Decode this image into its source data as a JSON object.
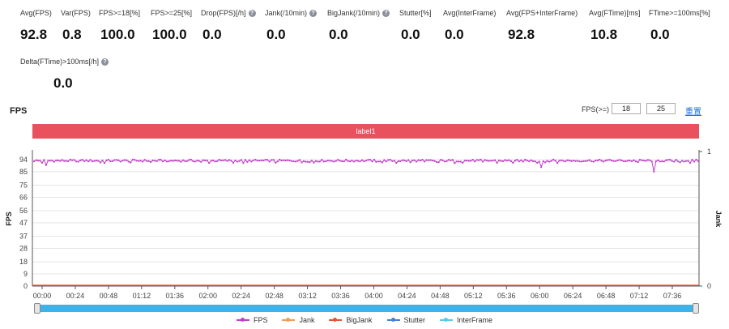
{
  "metrics": [
    {
      "label": "Avg(FPS)",
      "value": "92.8",
      "help": false
    },
    {
      "label": "Var(FPS)",
      "value": "0.8",
      "help": false
    },
    {
      "label": "FPS>=18[%]",
      "value": "100.0",
      "help": false
    },
    {
      "label": "FPS>=25[%]",
      "value": "100.0",
      "help": false
    },
    {
      "label": "Drop(FPS)[/h]",
      "value": "0.0",
      "help": true
    },
    {
      "label": "Jank(/10min)",
      "value": "0.0",
      "help": true
    },
    {
      "label": "BigJank(/10min)",
      "value": "0.0",
      "help": true
    },
    {
      "label": "Stutter[%]",
      "value": "0.0",
      "help": false
    },
    {
      "label": "Avg(InterFrame)",
      "value": "0.0",
      "help": false
    },
    {
      "label": "Avg(FPS+InterFrame)",
      "value": "92.8",
      "help": false
    },
    {
      "label": "Avg(FTime)[ms]",
      "value": "10.8",
      "help": false
    },
    {
      "label": "FTime>=100ms[%]",
      "value": "0.0",
      "help": false
    },
    {
      "label": "Delta(FTime)>100ms[/h]",
      "value": "0.0",
      "help": true
    }
  ],
  "section_title": "FPS",
  "thresholds": {
    "label": "FPS(>=)",
    "value1": "18",
    "value2": "25",
    "reset_label": "重置"
  },
  "label_bar": {
    "text": "label1",
    "color": "#e9515e"
  },
  "chart_data": {
    "type": "line",
    "ylabel": "FPS",
    "y2label": "Jank",
    "yticks": [
      0,
      9,
      18,
      28,
      37,
      47,
      56,
      66,
      75,
      85,
      94
    ],
    "ylim": [
      0,
      100
    ],
    "y2ticks": [
      0,
      1
    ],
    "xticks": [
      "00:00",
      "00:24",
      "00:48",
      "01:12",
      "01:36",
      "02:00",
      "02:24",
      "02:48",
      "03:12",
      "03:36",
      "04:00",
      "04:24",
      "04:48",
      "05:12",
      "05:36",
      "06:00",
      "06:24",
      "06:48",
      "07:12",
      "07:36"
    ],
    "x_unit": "mm:ss",
    "x_range_seconds": [
      0,
      480
    ],
    "series": [
      {
        "name": "FPS",
        "color": "#c23ec9",
        "baseline": 93.2,
        "dips": [
          {
            "x_seconds": 2.5,
            "y": 90
          },
          {
            "x_seconds": 361,
            "y": 88.5
          },
          {
            "x_seconds": 443,
            "y": 85
          }
        ]
      },
      {
        "name": "Jank",
        "color": "#f39c53",
        "values": [
          0
        ]
      },
      {
        "name": "BigJank",
        "color": "#e3562f",
        "values": [
          0
        ]
      },
      {
        "name": "Stutter",
        "color": "#4a7fd4",
        "values": [
          0
        ]
      },
      {
        "name": "InterFrame",
        "color": "#5cc9ea",
        "values": [
          0
        ]
      }
    ],
    "grid": true,
    "legend": "bottom"
  }
}
